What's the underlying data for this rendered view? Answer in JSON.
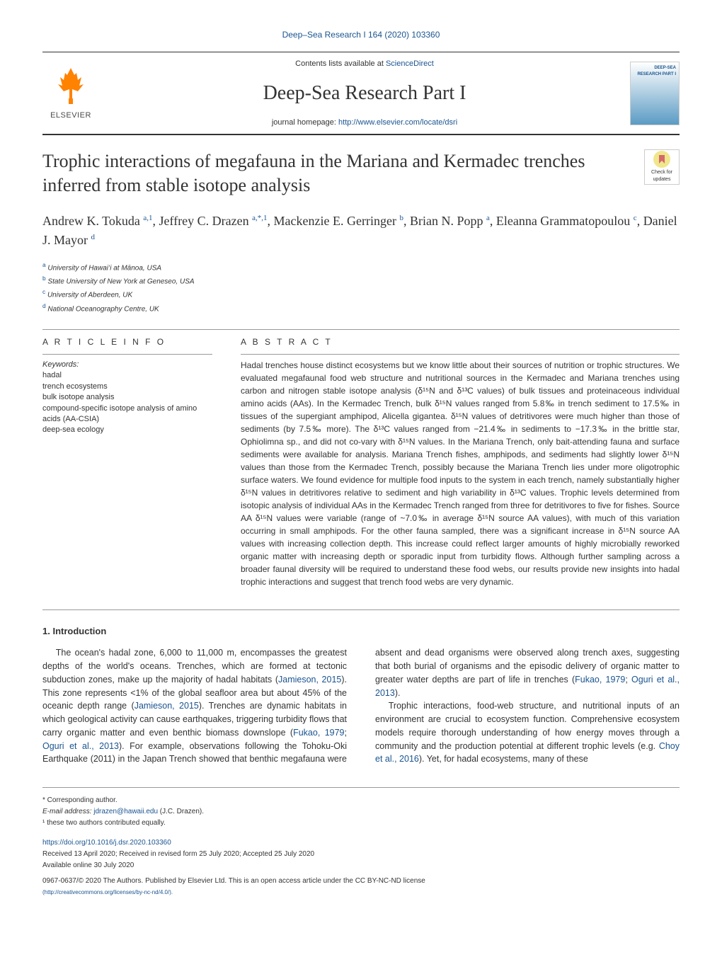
{
  "header": {
    "journal_ref": "Deep–Sea Research I 164 (2020) 103360",
    "contents_text": "Contents lists available at ",
    "contents_link": "ScienceDirect",
    "journal_name": "Deep-Sea Research Part I",
    "homepage_label": "journal homepage: ",
    "homepage_url": "http://www.elsevier.com/locate/dsri",
    "publisher": "ELSEVIER",
    "cover_text": "DEEP-SEA RESEARCH PART I"
  },
  "updates_badge": {
    "label": "Check for updates"
  },
  "article": {
    "title": "Trophic interactions of megafauna in the Mariana and Kermadec trenches inferred from stable isotope analysis",
    "authors_html": "Andrew K. Tokuda <sup>a,1</sup>, Jeffrey C. Drazen <sup>a,*,1</sup>, Mackenzie E. Gerringer <sup>b</sup>, Brian N. Popp <sup>a</sup>, Eleanna Grammatopoulou <sup>c</sup>, Daniel J. Mayor <sup>d</sup>",
    "affiliations": [
      {
        "sup": "a",
        "text": "University of Hawaiʻi at Mānoa, USA"
      },
      {
        "sup": "b",
        "text": "State University of New York at Geneseo, USA"
      },
      {
        "sup": "c",
        "text": "University of Aberdeen, UK"
      },
      {
        "sup": "d",
        "text": "National Oceanography Centre, UK"
      }
    ]
  },
  "info": {
    "heading": "A R T I C L E  I N F O",
    "keywords_label": "Keywords:",
    "keywords": [
      "hadal",
      "trench ecosystems",
      "bulk isotope analysis",
      "compound-specific isotope analysis of amino acids (AA-CSIA)",
      "deep-sea ecology"
    ]
  },
  "abstract": {
    "heading": "A B S T R A C T",
    "text": "Hadal trenches house distinct ecosystems but we know little about their sources of nutrition or trophic structures. We evaluated megafaunal food web structure and nutritional sources in the Kermadec and Mariana trenches using carbon and nitrogen stable isotope analysis (δ¹⁵N and δ¹³C values) of bulk tissues and proteinaceous individual amino acids (AAs). In the Kermadec Trench, bulk δ¹⁵N values ranged from 5.8‰ in trench sediment to 17.5‰ in tissues of the supergiant amphipod, Alicella gigantea. δ¹⁵N values of detritivores were much higher than those of sediments (by 7.5‰ more). The δ¹³C values ranged from −21.4‰ in sediments to −17.3‰ in the brittle star, Ophiolimna sp., and did not co-vary with δ¹⁵N values. In the Mariana Trench, only bait-attending fauna and surface sediments were available for analysis. Mariana Trench fishes, amphipods, and sediments had slightly lower δ¹⁵N values than those from the Kermadec Trench, possibly because the Mariana Trench lies under more oligotrophic surface waters. We found evidence for multiple food inputs to the system in each trench, namely substantially higher δ¹⁵N values in detritivores relative to sediment and high variability in δ¹³C values. Trophic levels determined from isotopic analysis of individual AAs in the Kermadec Trench ranged from three for detritivores to five for fishes. Source AA δ¹⁵N values were variable (range of ~7.0‰ in average δ¹⁵N source AA values), with much of this variation occurring in small amphipods. For the other fauna sampled, there was a significant increase in δ¹⁵N source AA values with increasing collection depth. This increase could reflect larger amounts of highly microbially reworked organic matter with increasing depth or sporadic input from turbidity flows. Although further sampling across a broader faunal diversity will be required to understand these food webs, our results provide new insights into hadal trophic interactions and suggest that trench food webs are very dynamic."
  },
  "body": {
    "intro_heading": "1. Introduction",
    "para1": "The ocean's hadal zone, 6,000 to 11,000 m, encompasses the greatest depths of the world's oceans. Trenches, which are formed at tectonic subduction zones, make up the majority of hadal habitats (",
    "ref1": "Jamieson, 2015",
    "para1b": "). This zone represents <1% of the global seafloor area but about 45% of the oceanic depth range (",
    "ref2": "Jamieson, 2015",
    "para1c": "). Trenches are dynamic habitats in which geological activity can cause earthquakes, triggering turbidity flows that carry organic matter and even benthic biomass downslope (",
    "ref3": "Fukao, 1979",
    "ref_sep": "; ",
    "ref4": "Oguri et al., 2013",
    "para1d": "). For example, observations following the Tohoku-Oki Earthquake (2011) in the Japan Trench showed that benthic megafauna were absent and dead organisms were observed along trench axes, suggesting that both burial of organisms and the episodic delivery of organic matter to greater water depths are part of life in trenches (",
    "ref5": "Fukao, 1979",
    "ref6": "Oguri et al., 2013",
    "para1e": ").",
    "para2": "Trophic interactions, food-web structure, and nutritional inputs of an environment are crucial to ecosystem function. Comprehensive ecosystem models require thorough understanding of how energy moves through a community and the production potential at different trophic levels (e.g. ",
    "ref7": "Choy et al., 2016",
    "para2b": "). Yet, for hadal ecosystems, many of these"
  },
  "footer": {
    "corresponding": "* Corresponding author.",
    "email_label": "E-mail address: ",
    "email": "jdrazen@hawaii.edu",
    "email_name": " (J.C. Drazen).",
    "note1": "¹ these two authors contributed equally.",
    "doi": "https://doi.org/10.1016/j.dsr.2020.103360",
    "received": "Received 13 April 2020; Received in revised form 25 July 2020; Accepted 25 July 2020",
    "available": "Available online 30 July 2020",
    "copyright": "0967-0637/© 2020 The Authors. Published by Elsevier Ltd. This is an open access article under the CC BY-NC-ND license",
    "cc_url": "(http://creativecommons.org/licenses/by-nc-nd/4.0/)."
  },
  "colors": {
    "link": "#1a5490",
    "elsevier_orange": "#ff8200",
    "text": "#333333",
    "border": "#999999"
  }
}
